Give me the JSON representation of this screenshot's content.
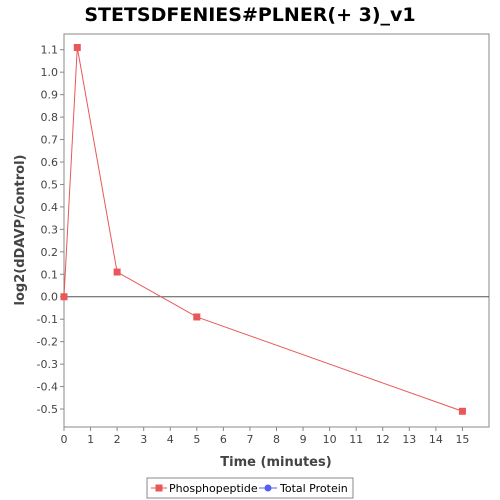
{
  "chart_data": {
    "type": "line",
    "title": "STETSDFENIES#PLNER(+ 3)_v1",
    "xlabel": "Time (minutes)",
    "ylabel": "log2(dDAVP/Control)",
    "xlim": [
      0,
      16
    ],
    "ylim": [
      -0.58,
      1.17
    ],
    "x_ticks": [
      0,
      1,
      2,
      3,
      4,
      5,
      6,
      7,
      8,
      9,
      10,
      11,
      12,
      13,
      14,
      15
    ],
    "y_ticks": [
      -0.5,
      -0.4,
      -0.3,
      -0.2,
      -0.1,
      0.0,
      0.1,
      0.2,
      0.3,
      0.4,
      0.5,
      0.6,
      0.7,
      0.8,
      0.9,
      1.0,
      1.1
    ],
    "y_tick_labels": [
      "-0.5",
      "-0.4",
      "-0.3",
      "-0.2",
      "-0.1",
      "0.0",
      "0.1",
      "0.2",
      "0.3",
      "0.4",
      "0.5",
      "0.6",
      "0.7",
      "0.8",
      "0.9",
      "1.0",
      "1.1"
    ],
    "zero_line": true,
    "grid": false,
    "legend_position": "bottom",
    "series": [
      {
        "name": "Phosphopeptide",
        "color": "#e8575a",
        "marker": "square",
        "x": [
          0,
          0.5,
          2,
          5,
          15
        ],
        "y": [
          0.0,
          1.11,
          0.11,
          -0.09,
          -0.51
        ]
      },
      {
        "name": "Total Protein",
        "color": "#5560e8",
        "marker": "circle",
        "x": [],
        "y": []
      }
    ]
  }
}
